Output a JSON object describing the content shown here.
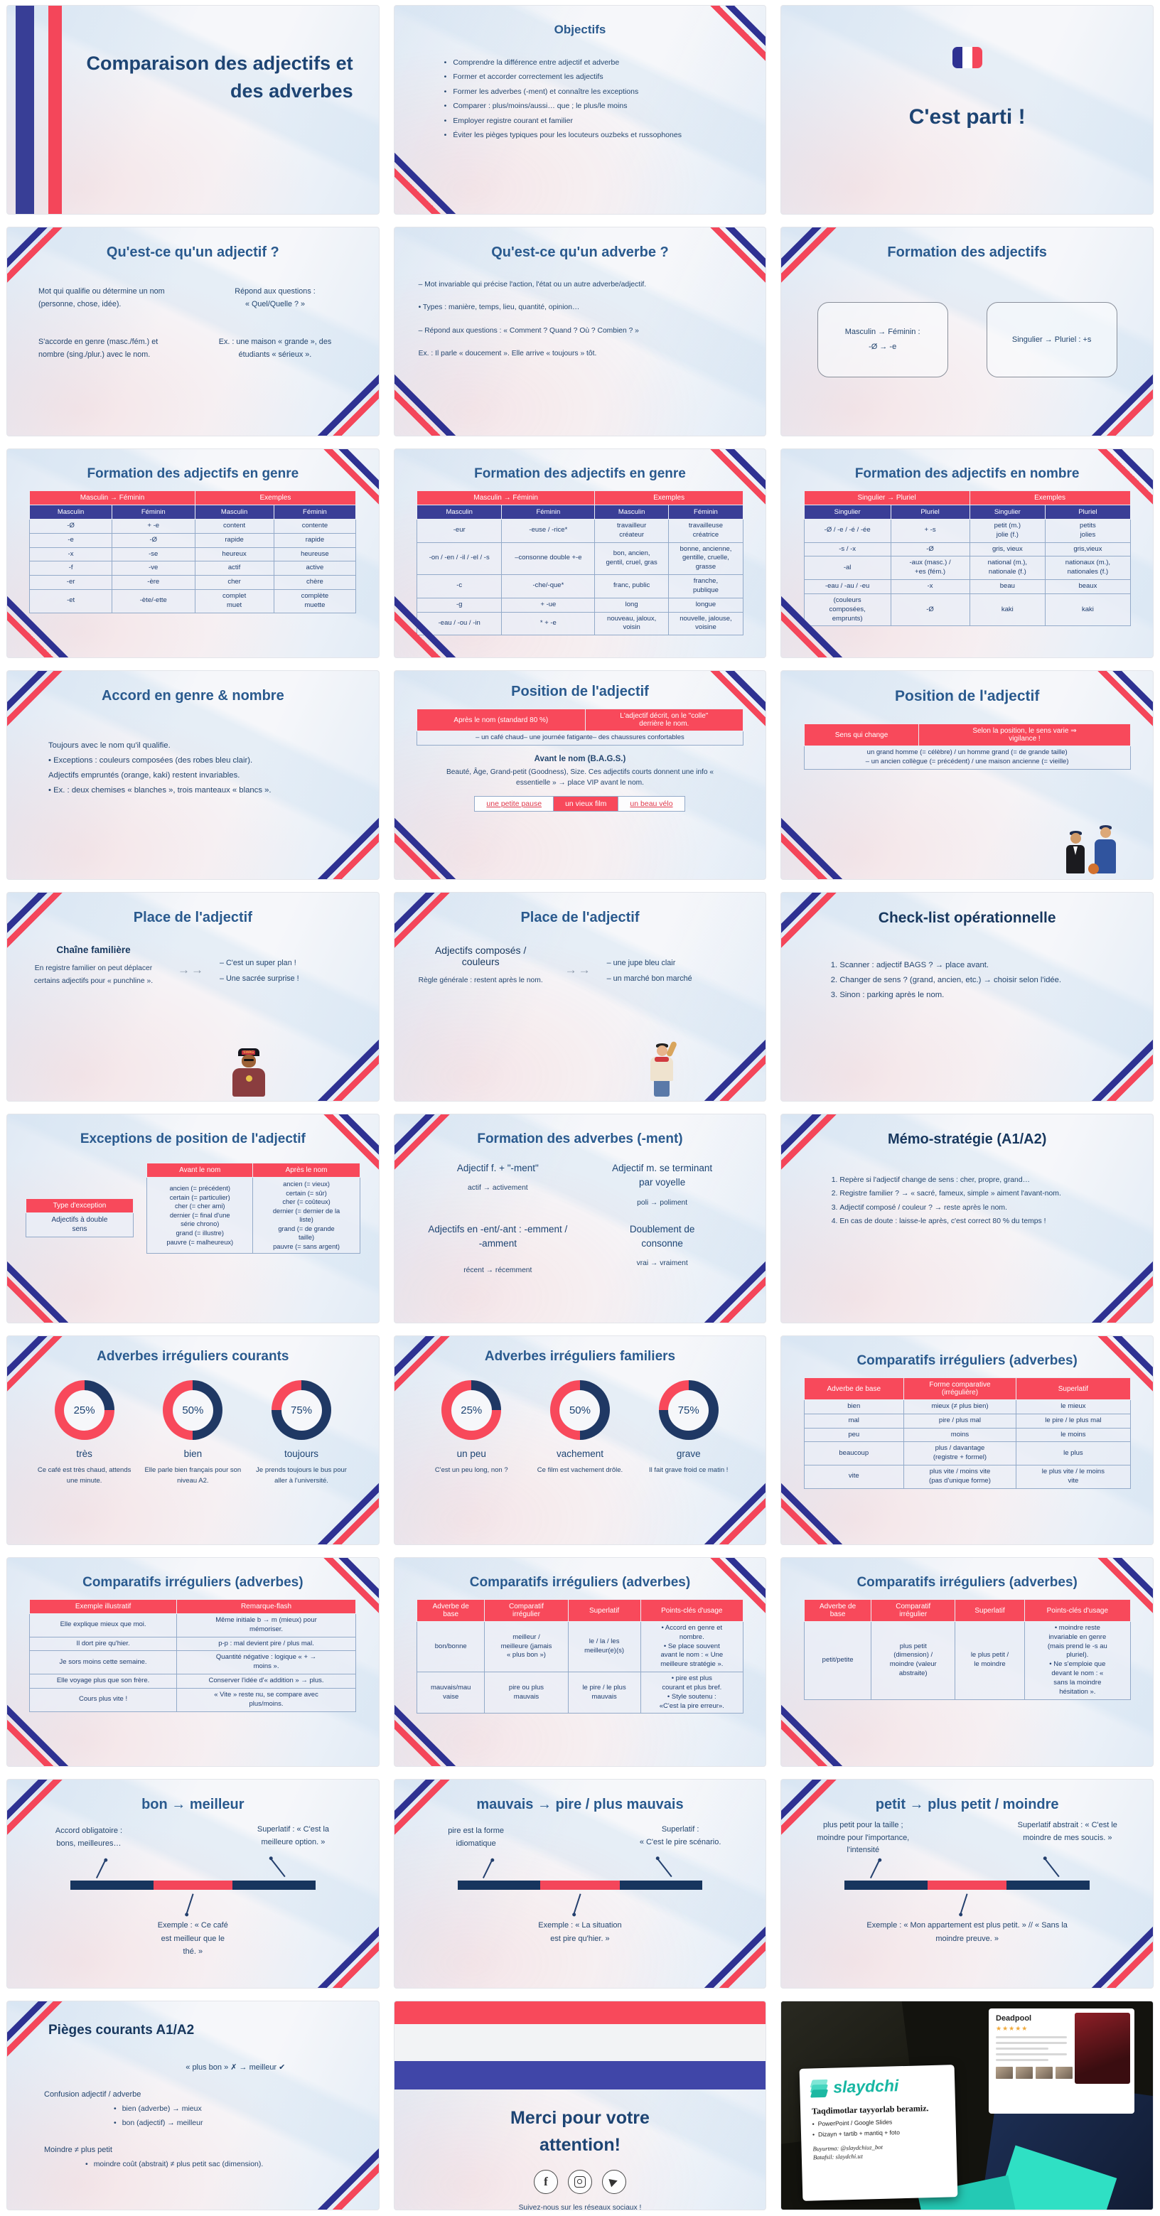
{
  "deck_title": "Comparaison des adjectifs et des adverbes",
  "colors": {
    "accent_red": "#f8495b",
    "accent_indigo": "#3a3e96",
    "ribbon_blue": "#2e3192",
    "title_blue": "#2a5a8e",
    "navy": "#1f3864",
    "donut_navy": "#1f3864",
    "brand_teal": "#18b7a3"
  },
  "slides": [
    {
      "title": "Comparaison des adjectifs et des adverbes"
    },
    {
      "title": "Objectifs",
      "bullets": [
        "Comprendre la différence entre adjectif et adverbe",
        "Former et accorder correctement les adjectifs",
        "Former les adverbes (-ment) et connaître les exceptions",
        "Comparer : plus/moins/aussi… que ; le plus/le moins",
        "Employer registre courant et familier",
        "Éviter les pièges typiques pour les locuteurs ouzbeks et russophones"
      ]
    },
    {
      "title": "C'est parti !"
    },
    {
      "title": "Qu'est-ce qu'un adjectif ?",
      "tl": "Mot qui qualifie ou détermine un nom (personne, chose, idée).",
      "tr": "Répond aux questions :\n« Quel/Quelle ? »",
      "bl": "S'accorde en genre (masc./fém.) et nombre (sing./plur.) avec le nom.",
      "br": "Ex. : une maison « grande », des étudiants « sérieux »."
    },
    {
      "title": "Qu'est-ce qu'un adverbe ?",
      "lines": [
        "– Mot invariable qui précise l'action, l'état ou un autre adverbe/adjectif.",
        "•  Types : manière, temps, lieu, quantité, opinion…",
        "– Répond aux questions : « Comment ? Quand ? Où ? Combien ? »",
        "Ex. : Il parle « doucement ». Elle arrive « toujours » tôt."
      ]
    },
    {
      "title": "Formation des adjectifs",
      "box1_line1": "Masculin → Féminin :",
      "box1_line2": "-Ø → -e",
      "box2": "Singulier → Pluriel : +s"
    },
    {
      "title": "Formation des adjectifs en genre",
      "table": {
        "header1": [
          {
            "label": "Masculin → Féminin",
            "span": 2
          },
          {
            "label": "Exemples",
            "span": 2
          }
        ],
        "header2": [
          "Masculin",
          "Féminin",
          "Masculin",
          "Féminin"
        ],
        "rows": [
          [
            "-Ø",
            "+ -e",
            "content",
            "contente"
          ],
          [
            "-e",
            "-Ø",
            "rapide",
            "rapide"
          ],
          [
            "-x",
            "-se",
            "heureux",
            "heureuse"
          ],
          [
            "-f",
            "-ve",
            "actif",
            "active"
          ],
          [
            "-er",
            "-ère",
            "cher",
            "chère"
          ],
          [
            "-et",
            "-ète/-ette",
            "complet\nmuet",
            "complète\nmuette"
          ]
        ]
      }
    },
    {
      "title": "Formation des adjectifs en genre",
      "table": {
        "header1": [
          {
            "label": "Masculin → Féminin",
            "span": 2
          },
          {
            "label": "Exemples",
            "span": 2
          }
        ],
        "header2": [
          "Masculin",
          "Féminin",
          "Masculin",
          "Féminin"
        ],
        "rows": [
          [
            "-eur",
            "-euse / -rice*",
            "travailleur\ncréateur",
            "travailleuse\ncréatrice"
          ],
          [
            "-on / -en / -il / -el / -s",
            "–consonne double +-e",
            "bon, ancien,\ngentil, cruel, gras",
            "bonne, ancienne,\ngentille, cruelle,\ngrasse"
          ],
          [
            "-c",
            "-che/-que*",
            "franc, public",
            "franche,\npublique"
          ],
          [
            "-g",
            "+ -ue",
            "long",
            "longue"
          ],
          [
            "-eau / -ou / -in",
            "* + -e",
            "nouveau, jaloux,\nvoisin",
            "nouvelle, jalouse,\nvoisine"
          ]
        ]
      }
    },
    {
      "title": "Formation des adjectifs en nombre",
      "table": {
        "header1": [
          {
            "label": "Singulier → Pluriel",
            "span": 2
          },
          {
            "label": "Exemples",
            "span": 2
          }
        ],
        "header2": [
          "Singulier",
          "Pluriel",
          "Singulier",
          "Pluriel"
        ],
        "rows": [
          [
            "-Ø / -e / -é / -ée",
            "+ -s",
            "petit (m.)\njolie (f.)",
            "petits\njolies"
          ],
          [
            "-s / -x",
            "-Ø",
            "gris, vieux",
            "gris,vieux"
          ],
          [
            "-al",
            "-aux (masc.) /\n+es (fém.)",
            "national (m.),\nnationale (f.)",
            "nationaux (m.),\nnationales (f.)"
          ],
          [
            "-eau / -au / -eu",
            "-x",
            "beau",
            "beaux"
          ],
          [
            "(couleurs\ncomposées,\nemprunts)",
            "-Ø",
            "kaki",
            "kaki"
          ]
        ]
      }
    },
    {
      "title": "Accord en genre & nombre",
      "lines": [
        "Toujours avec le nom qu'il qualifie.",
        "•  Exceptions : couleurs composées (des robes bleu clair).",
        "Adjectifs empruntés (orange, kaki) restent invariables.",
        "•  Ex. : deux chemises « blanches », trois manteaux « blancs »."
      ]
    },
    {
      "title": "Position de l'adjectif",
      "table": {
        "header1": [
          "Après le nom (standard 80 %)",
          "L'adjectif décrit, on le \"colle\"\nderrière le nom."
        ],
        "rows": [
          [
            "– un café chaud– une journée fatigante– des chaussures confortables"
          ]
        ]
      },
      "bags_title": "Avant le nom (B.A.G.S.)",
      "bags_text": "Beauté, Âge, Grand-petit (Goodness), Size. Ces adjectifs courts donnent une info « essentielle » → place VIP avant le nom.",
      "chips": [
        "une petite pause",
        "un vieux film",
        "un beau vélo"
      ]
    },
    {
      "title": "Position de l'adjectif",
      "table": {
        "header1": [
          "Sens qui change",
          "Selon la position, le sens varie ⇒\nvigilance !"
        ],
        "rows": [
          [
            "un grand homme (= célèbre) / un homme grand (= de grande taille)\n– un ancien collègue (= précédent) / une maison ancienne (= vieille)"
          ]
        ]
      }
    },
    {
      "title": "Place de l'adjectif",
      "heading": "Chaîne familière",
      "sub": "En registre familier on peut déplacer certains adjectifs pour « punchline ».",
      "arrows": "→→",
      "ex1": "– C'est un super plan !",
      "ex2": "– Une sacrée surprise !",
      "cap_text": "SWAG"
    },
    {
      "title": "Place de l'adjectif",
      "heading": "Adjectifs composés /\ncouleurs",
      "sub": "Règle générale : restent après le nom.",
      "arrows": "→→",
      "ex1": "– une jupe bleu clair",
      "ex2": "– un marché bon marché"
    },
    {
      "title": "Check-list opérationnelle",
      "items": [
        "Scanner : adjectif BAGS ? → place avant.",
        "Changer de sens ? (grand, ancien, etc.) → choisir selon l'idée.",
        "Sinon : parking après le nom."
      ]
    },
    {
      "title": "Exceptions de position de l'adjectif",
      "left_table": {
        "header1": [
          "Type d'exception"
        ],
        "rows": [
          [
            "Adjectifs à double\nsens"
          ]
        ]
      },
      "right_table": {
        "header1": [
          "Avant le nom",
          "Après le nom"
        ],
        "rows": [
          [
            "ancien (= précédent)\ncertain (= particulier)\ncher (= cher ami)\ndernier (= final d'une\nsérie chrono)\ngrand (= illustre)\npauvre (= malheureux)",
            "ancien (= vieux)\ncertain (= sûr)\ncher (= coûteux)\ndernier (= dernier de la\nliste)\ngrand (= de grande\ntaille)\npauvre (= sans argent)"
          ]
        ]
      }
    },
    {
      "title": "Formation des adverbes (-ment)",
      "g1_head": "Adjectif f. + \"-ment\"",
      "g1_ex": "actif → activement",
      "g2_head": "Adjectif m. se terminant\npar voyelle",
      "g2_ex": "poli → poliment",
      "g3_head": "Adjectifs en -ent/-ant : -emment /\n-amment",
      "g3_ex": "récent → récemment",
      "g4_head": "Doublement de\nconsonne",
      "g4_ex": "vrai → vraiment"
    },
    {
      "title": "Mémo-stratégie (A1/A2)",
      "items": [
        "Repère si l'adjectif change de sens : cher, propre, grand…",
        "Registre familier ? → « sacré, fameux, simple » aiment l'avant-nom.",
        "Adjectif composé / couleur ? → reste après le nom.",
        "En cas de doute : laisse-le après, c'est correct 80 % du temps !"
      ]
    },
    {
      "title": "Adverbes irréguliers courants",
      "donuts": [
        {
          "pct": "25%",
          "word": "très",
          "example": "Ce café est très chaud, attends une minute."
        },
        {
          "pct": "50%",
          "word": "bien",
          "example": "Elle parle bien français pour son niveau A2."
        },
        {
          "pct": "75%",
          "word": "toujours",
          "example": "Je prends toujours le bus pour aller à l'université."
        }
      ]
    },
    {
      "title": "Adverbes irréguliers familiers",
      "donuts": [
        {
          "pct": "25%",
          "word": "un peu",
          "example": "C'est un peu long, non ?"
        },
        {
          "pct": "50%",
          "word": "vachement",
          "example": "Ce film est vachement drôle."
        },
        {
          "pct": "75%",
          "word": "grave",
          "example": "Il fait grave froid ce matin !"
        }
      ]
    },
    {
      "title": "Comparatifs irréguliers (adverbes)",
      "table": {
        "header1": [
          "Adverbe de base",
          "Forme comparative\n(irrégulière)",
          "Superlatif"
        ],
        "rows": [
          [
            "bien",
            "mieux (≠ plus bien)",
            "le mieux"
          ],
          [
            "mal",
            "pire / plus mal",
            "le pire / le plus mal"
          ],
          [
            "peu",
            "moins",
            "le moins"
          ],
          [
            "beaucoup",
            "plus / davantage\n(registre + formel)",
            "le plus"
          ],
          [
            "vite",
            "plus vite / moins vite\n(pas d'unique forme)",
            "le plus vite / le moins\nvite"
          ]
        ]
      }
    },
    {
      "title": "Comparatifs irréguliers (adverbes)",
      "table": {
        "header1": [
          "Exemple illustratif",
          "Remarque-flash"
        ],
        "rows": [
          [
            "Elle explique mieux que moi.",
            "Même initiale b → m (mieux) pour\nmémoriser."
          ],
          [
            "Il dort pire qu'hier.",
            "p-p : mal devient pire / plus mal."
          ],
          [
            "Je sors moins cette semaine.",
            "Quantité négative : logique « + →\nmoins »."
          ],
          [
            "Elle voyage plus que son frère.",
            "Conserver l'idée d'« addition » → plus."
          ],
          [
            "Cours plus vite !",
            "« Vite » reste nu, se compare avec\nplus/moins."
          ]
        ]
      }
    },
    {
      "title": "Comparatifs irréguliers (adverbes)",
      "table": {
        "header1": [
          "Adverbe de\nbase",
          "Comparatif\nirrégulier",
          "Superlatif",
          "Points-clés d'usage"
        ],
        "rows": [
          [
            "bon/bonne",
            "meilleur /\nmeilleure (jamais\n« plus bon »)",
            "le / la / les\nmeilleur(e)(s)",
            "• Accord en genre et\nnombre.\n• Se place souvent\navant le nom : « Une\nmeilleure stratégie »."
          ],
          [
            "mauvais/mau\nvaise",
            "pire ou plus\nmauvais",
            "le pire / le plus\nmauvais",
            "• pire est plus\ncourant et plus bref.\n• Style soutenu :\n«C'est la pire erreur»."
          ]
        ]
      }
    },
    {
      "title": "Comparatifs irréguliers (adverbes)",
      "table": {
        "header1": [
          "Adverbe de\nbase",
          "Comparatif\nirrégulier",
          "Superlatif",
          "Points-clés d'usage"
        ],
        "rows": [
          [
            "petit/petite",
            "plus petit\n(dimension) /\nmoindre (valeur\nabstraite)",
            "le plus petit /\nle moindre",
            "• moindre reste\ninvariable en genre\n(mais prend le -s au\npluriel).\n• Ne s'emploie que\ndevant le nom : «\nsans la moindre\nhésitation »."
          ]
        ]
      }
    },
    {
      "title": "bon → meilleur",
      "left": "Accord obligatoire :\nbons, meilleures…",
      "right": "Superlatif : « C'est la\nmeilleure option. »",
      "example": "Exemple : « Ce café\nest meilleur que le\nthé. »"
    },
    {
      "title": "mauvais → pire / plus mauvais",
      "left": "pire est la forme\nidiomatique",
      "right": "Superlatif :\n« C'est le pire scénario.",
      "example": "Exemple : « La situation\nest pire qu'hier. »"
    },
    {
      "title": "petit → plus petit / moindre",
      "left": "plus petit pour la taille ;\nmoindre pour l'importance,\nl'intensité",
      "right": "Superlatif abstrait : « C'est le\nmoindre de mes soucis. »",
      "example": "Exemple : « Mon appartement est plus petit. » // « Sans la\nmoindre preuve. »"
    },
    {
      "title": "Pièges courants A1/A2",
      "rule": "« plus bon » ✗ → meilleur ✔",
      "h1": "Confusion adjectif / adverbe",
      "b1": "bien (adverbe) → mieux",
      "b2": "bon (adjectif) → meilleur",
      "h2": "Moindre ≠ plus petit",
      "b3": "moindre coût (abstrait) ≠ plus petit sac (dimension)."
    },
    {
      "title": "Merci pour votre\nattention!",
      "footer": "Suivez-nous sur les réseaux sociaux !"
    },
    {
      "brand": "slaydchi",
      "headline": "Taqdimotlar tayyorlab beramiz.",
      "bullet1": "PowerPoint / Google Slides",
      "bullet2": "Dizayn + tartib + mantiq + foto",
      "order_line": "Buyurtma: @slaydchiuz_bot",
      "info_line": "Batafsil: slaydchi.uz",
      "card_title": "Deadpool",
      "stars": "★★★★★"
    }
  ]
}
